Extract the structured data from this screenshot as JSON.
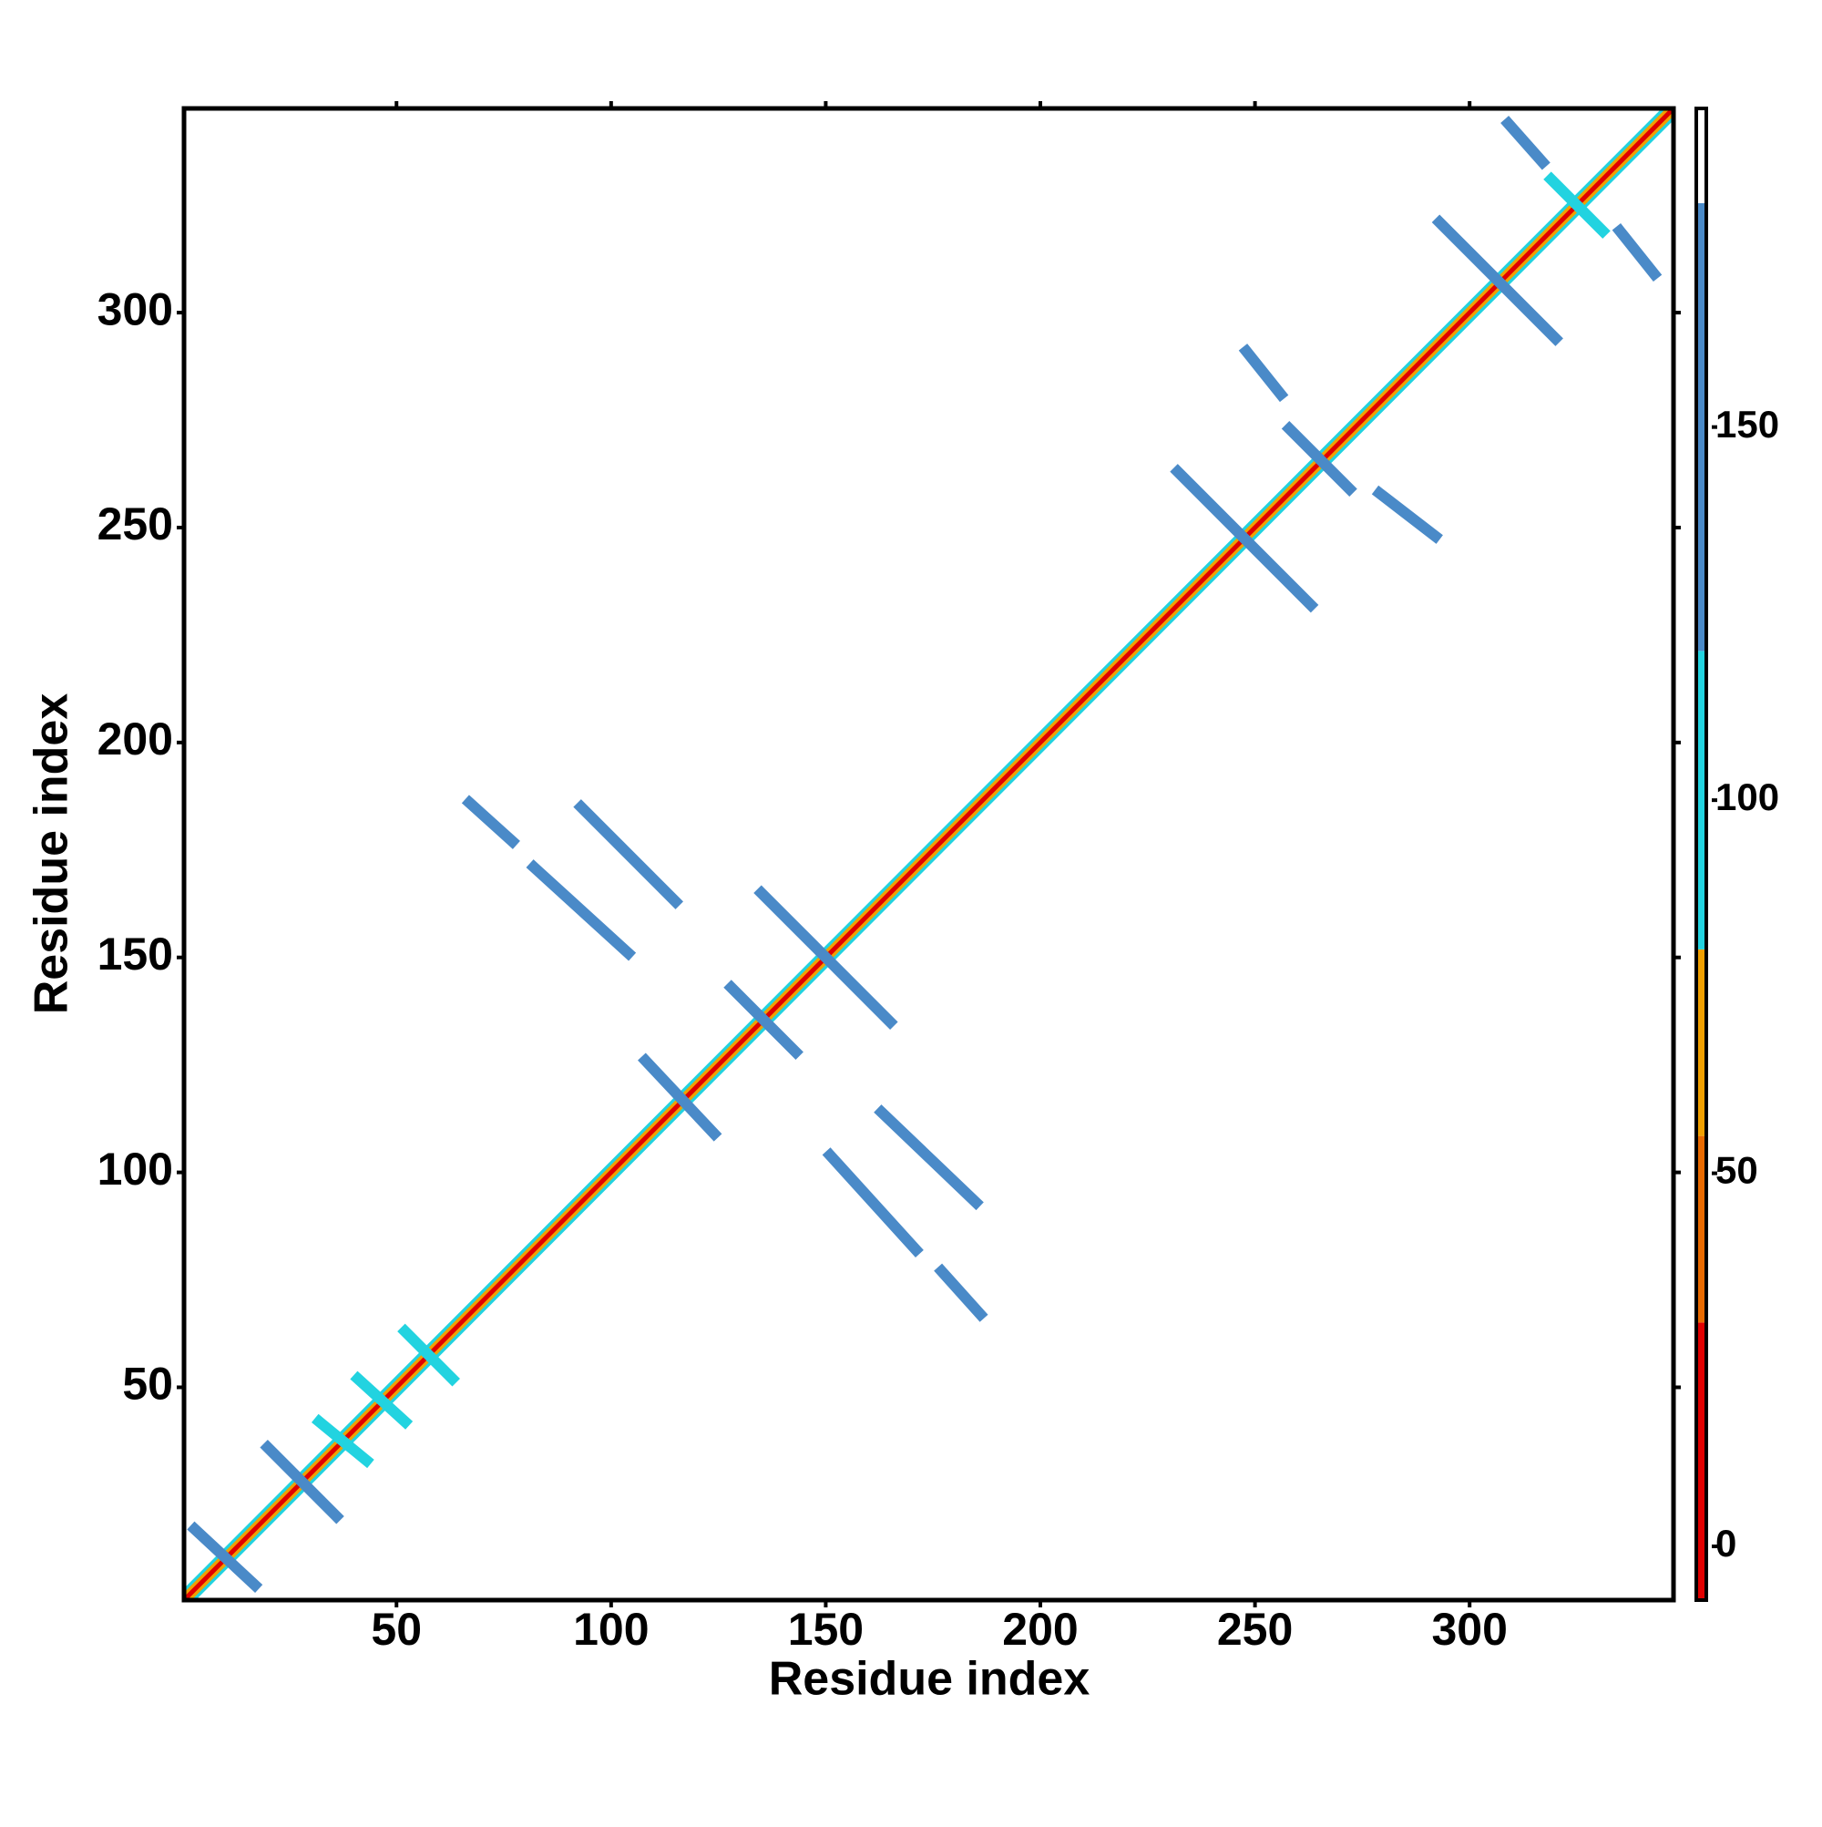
{
  "chart_data": {
    "type": "heatmap",
    "xlabel": "Residue index",
    "ylabel": "Residue index",
    "xlim": [
      0.5,
      347.5
    ],
    "ylim": [
      0.5,
      347.5
    ],
    "xticks": [
      50,
      100,
      150,
      200,
      250,
      300
    ],
    "yticks": [
      50,
      100,
      150,
      200,
      250,
      300
    ],
    "colorbar": {
      "lim": [
        -7.2,
        192.7
      ],
      "ticks": [
        0,
        50,
        100,
        150
      ],
      "bands": [
        {
          "from": -7.2,
          "to": 30,
          "color": "#e00000"
        },
        {
          "from": 30,
          "to": 55,
          "color": "#e86a00"
        },
        {
          "from": 55,
          "to": 80,
          "color": "#f0a000"
        },
        {
          "from": 80,
          "to": 120,
          "color": "#22d3e0"
        },
        {
          "from": 120,
          "to": 180,
          "color": "#4a8ac8"
        },
        {
          "from": 180,
          "to": 192.7,
          "color": "#ffffff"
        }
      ]
    },
    "diagonal_bands": [
      {
        "x": [
          3,
          347
        ],
        "y": [
          1,
          345
        ],
        "value": 95
      },
      {
        "x": [
          1,
          345
        ],
        "y": [
          3,
          347
        ],
        "value": 95
      },
      {
        "x": [
          2,
          347
        ],
        "y": [
          1,
          346
        ],
        "value": 65
      },
      {
        "x": [
          1,
          346
        ],
        "y": [
          2,
          347
        ],
        "value": 65
      },
      {
        "x": [
          1,
          347
        ],
        "y": [
          1,
          347
        ],
        "value": 0
      }
    ],
    "stripes": [
      {
        "x": [
          3,
          17
        ],
        "y": [
          17,
          4
        ],
        "value": 140
      },
      {
        "x": [
          20,
          36
        ],
        "y": [
          36,
          20
        ],
        "value": 140
      },
      {
        "x": [
          32,
          43
        ],
        "y": [
          42,
          33
        ],
        "value": 100
      },
      {
        "x": [
          41,
          52
        ],
        "y": [
          52,
          42
        ],
        "value": 100
      },
      {
        "x": [
          52,
          63
        ],
        "y": [
          63,
          52
        ],
        "value": 100
      },
      {
        "x": [
          67,
          77
        ],
        "y": [
          186,
          177
        ],
        "value": 150
      },
      {
        "x": [
          93,
          115
        ],
        "y": [
          185,
          163
        ],
        "value": 150
      },
      {
        "x": [
          82,
          104
        ],
        "y": [
          171,
          151
        ],
        "value": 150
      },
      {
        "x": [
          128,
          143
        ],
        "y": [
          143,
          128
        ],
        "value": 150
      },
      {
        "x": [
          135,
          165
        ],
        "y": [
          165,
          135
        ],
        "value": 150
      },
      {
        "x": [
          108,
          124
        ],
        "y": [
          126,
          109
        ],
        "value": 140
      },
      {
        "x": [
          163,
          185
        ],
        "y": [
          114,
          93
        ],
        "value": 150
      },
      {
        "x": [
          151,
          171
        ],
        "y": [
          104,
          82
        ],
        "value": 150
      },
      {
        "x": [
          177,
          186
        ],
        "y": [
          77,
          67
        ],
        "value": 150
      },
      {
        "x": [
          232,
          263
        ],
        "y": [
          263,
          232
        ],
        "value": 150
      },
      {
        "x": [
          248,
          256
        ],
        "y": [
          291,
          281
        ],
        "value": 150
      },
      {
        "x": [
          258,
          272
        ],
        "y": [
          273,
          259
        ],
        "value": 150
      },
      {
        "x": [
          279,
          292
        ],
        "y": [
          258,
          248
        ],
        "value": 150
      },
      {
        "x": [
          293,
          320
        ],
        "y": [
          321,
          294
        ],
        "value": 150
      },
      {
        "x": [
          309,
          317
        ],
        "y": [
          344,
          335
        ],
        "value": 150
      },
      {
        "x": [
          319,
          331
        ],
        "y": [
          331,
          319
        ],
        "value": 100
      },
      {
        "x": [
          335,
          343
        ],
        "y": [
          319,
          309
        ],
        "value": 150
      }
    ]
  }
}
